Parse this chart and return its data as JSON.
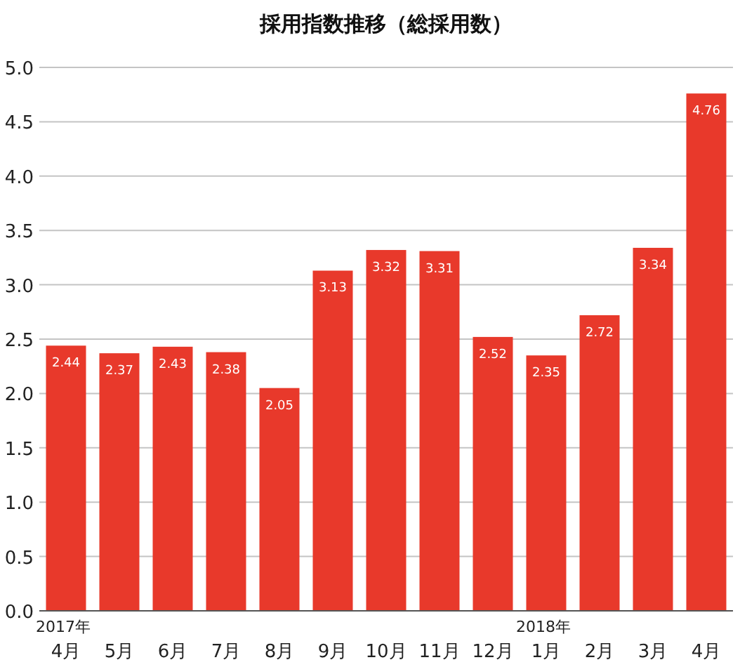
{
  "chart_data": {
    "type": "bar",
    "title": "採用指数推移（総採用数）",
    "categories": [
      "2017年\n4月",
      "5月",
      "6月",
      "7月",
      "8月",
      "9月",
      "10月",
      "11月",
      "12月",
      "2018年\n1月",
      "2月",
      "3月",
      "4月"
    ],
    "values": [
      2.44,
      2.37,
      2.43,
      2.38,
      2.05,
      3.13,
      3.32,
      3.31,
      2.52,
      2.35,
      2.72,
      3.34,
      4.76
    ],
    "color": "#e8392b",
    "ylim": [
      0,
      5
    ],
    "yticks": [
      "0.0",
      "0.5",
      "1.0",
      "1.5",
      "2.0",
      "2.5",
      "3.0",
      "3.5",
      "4.0",
      "4.5",
      "5.0"
    ],
    "grid": "y",
    "data_labels": true
  }
}
